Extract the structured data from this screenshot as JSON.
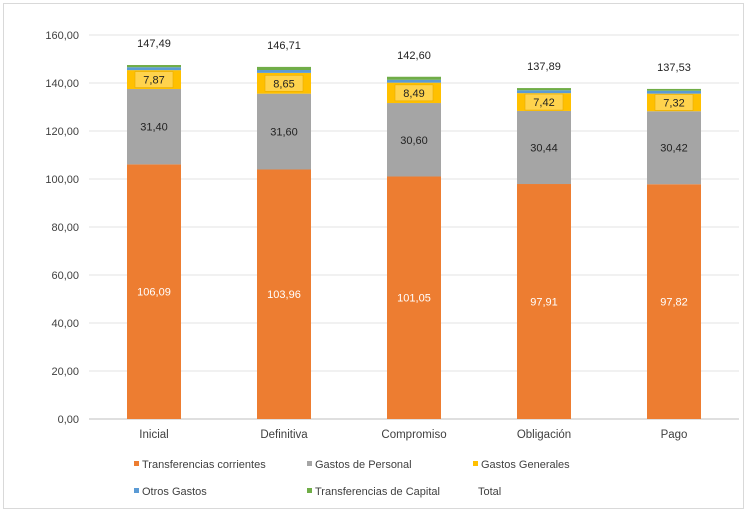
{
  "chart_data": {
    "type": "bar",
    "stacked": true,
    "categories": [
      "Inicial",
      "Definitiva",
      "Compromiso",
      "Obligación",
      "Pago"
    ],
    "series": [
      {
        "name": "Transferencias corrientes",
        "values": [
          106.09,
          103.96,
          101.05,
          97.91,
          97.82
        ],
        "color": "#ed7d31",
        "label_color": "#ffffff"
      },
      {
        "name": "Gastos de Personal",
        "values": [
          31.4,
          31.6,
          30.6,
          30.44,
          30.42
        ],
        "color": "#a5a5a5",
        "label_color": "#222222"
      },
      {
        "name": "Gastos Generales",
        "values": [
          7.87,
          8.65,
          8.49,
          7.42,
          7.32
        ],
        "color": "#ffc000",
        "label_color": "#222222"
      },
      {
        "name": "Otros Gastos",
        "values": [
          1.2,
          1.2,
          1.2,
          1.2,
          1.2
        ],
        "color": "#5b9bd5"
      },
      {
        "name": "Transferencias de Capital",
        "values": [
          0.93,
          1.3,
          1.26,
          0.92,
          0.77
        ],
        "color": "#70ad47"
      }
    ],
    "series_labels": [
      [
        "106,09",
        "103,96",
        "101,05",
        "97,91",
        "97,82"
      ],
      [
        "31,40",
        "31,60",
        "30,60",
        "30,44",
        "30,42"
      ],
      [
        "7,87",
        "8,65",
        "8,49",
        "7,42",
        "7,32"
      ]
    ],
    "totals": [
      147.49,
      146.71,
      142.6,
      137.89,
      137.53
    ],
    "total_labels": [
      "147,49",
      "146,71",
      "142,60",
      "137,89",
      "137,53"
    ],
    "total_legend_name": "Total",
    "ylim": [
      0,
      160
    ],
    "yticks": [
      "0,00",
      "20,00",
      "40,00",
      "60,00",
      "80,00",
      "100,00",
      "120,00",
      "140,00",
      "160,00"
    ],
    "grid": true,
    "legend_position": "bottom",
    "title": "",
    "xlabel": "",
    "ylabel": ""
  }
}
